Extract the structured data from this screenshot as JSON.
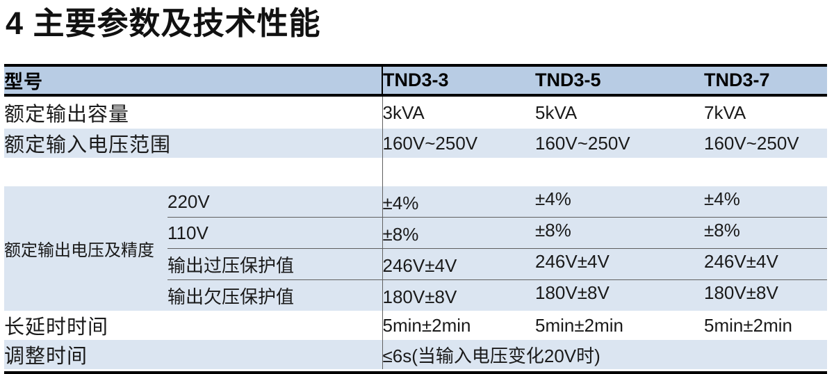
{
  "page": {
    "title": "4 主要参数及技术性能"
  },
  "table": {
    "header": {
      "model_label": "型号",
      "models": [
        "TND3-3",
        "TND3-5",
        "TND3-7"
      ]
    },
    "rows": {
      "capacity": {
        "label": "额定输出容量",
        "values": [
          "3kVA",
          "5kVA",
          "7kVA"
        ]
      },
      "input_range": {
        "label": "额定输入电压范围",
        "values": [
          "160V~250V",
          "160V~250V",
          "160V~250V"
        ]
      },
      "output_group": {
        "label": "额定输出电压及精度",
        "subrows": [
          {
            "label": "220V",
            "values": [
              "±4%",
              "±4%",
              "±4%"
            ]
          },
          {
            "label": "110V",
            "values": [
              "±8%",
              "±8%",
              "±8%"
            ]
          },
          {
            "label": "输出过压保护值",
            "values": [
              "246V±4V",
              "246V±4V",
              "246V±4V"
            ]
          },
          {
            "label": "输出欠压保护值",
            "values": [
              "180V±8V",
              "180V±8V",
              "180V±8V"
            ]
          }
        ]
      },
      "long_delay": {
        "label": "长延时时间",
        "values": [
          "5min±2min",
          "5min±2min",
          "5min±2min"
        ]
      },
      "adjust_time": {
        "label": "调整时间",
        "value": "≤6s(当输入电压变化20V时)"
      }
    },
    "colors": {
      "header_bg": "#b8cce4",
      "alt_row_bg": "#dbe5f1",
      "heavy_border": "#000000",
      "grid_line": "#5f5f5f"
    }
  }
}
